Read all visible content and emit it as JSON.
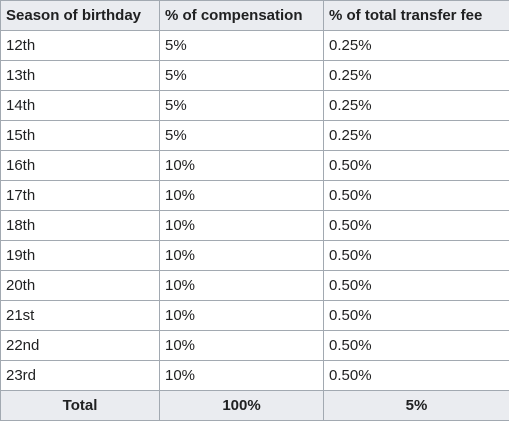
{
  "table": {
    "headers": [
      "Season of birthday",
      "% of compensation",
      "% of total transfer fee"
    ],
    "rows": [
      [
        "12th",
        "5%",
        "0.25%"
      ],
      [
        "13th",
        "5%",
        "0.25%"
      ],
      [
        "14th",
        "5%",
        "0.25%"
      ],
      [
        "15th",
        "5%",
        "0.25%"
      ],
      [
        "16th",
        "10%",
        "0.50%"
      ],
      [
        "17th",
        "10%",
        "0.50%"
      ],
      [
        "18th",
        "10%",
        "0.50%"
      ],
      [
        "19th",
        "10%",
        "0.50%"
      ],
      [
        "20th",
        "10%",
        "0.50%"
      ],
      [
        "21st",
        "10%",
        "0.50%"
      ],
      [
        "22nd",
        "10%",
        "0.50%"
      ],
      [
        "23rd",
        "10%",
        "0.50%"
      ]
    ],
    "footer": [
      "Total",
      "100%",
      "5%"
    ]
  }
}
